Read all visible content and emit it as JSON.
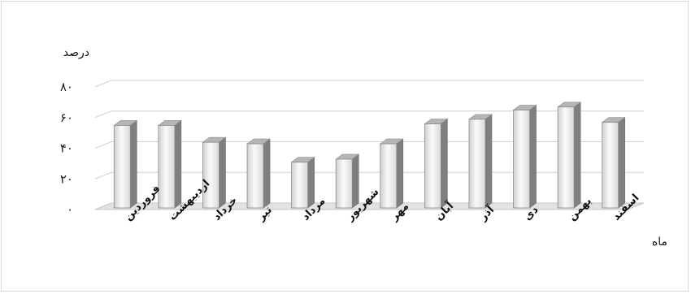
{
  "chart_data": {
    "type": "bar",
    "ylabel": "درصد",
    "xlabel": "ماه",
    "ylim": [
      0,
      80
    ],
    "yticks": [
      0,
      20,
      40,
      60,
      80
    ],
    "ytick_labels": [
      "۰",
      "۲۰",
      "۴۰",
      "۶۰",
      "۸۰"
    ],
    "grid": true,
    "categories": [
      "فروردین",
      "اردیبهشت",
      "خرداد",
      "تیر",
      "مرداد",
      "شهریور",
      "مهر",
      "آبان",
      "آذر",
      "دی",
      "بهمن",
      "اسفند"
    ],
    "values": [
      57,
      57,
      46,
      45,
      33,
      35,
      45,
      58,
      61,
      67,
      69,
      59
    ],
    "colors": {
      "bar_light": "#f7f7f7",
      "bar_mid": "#d6d6d6",
      "bar_side": "#7f7f7f",
      "bar_top": "#b5b5b5",
      "grid": "#d0d0d0"
    }
  }
}
